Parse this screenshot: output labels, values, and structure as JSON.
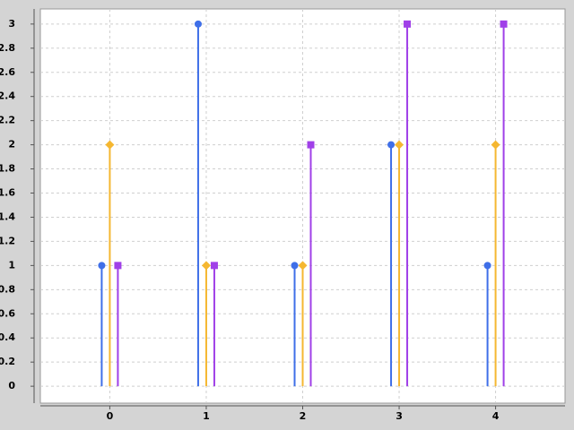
{
  "chart_data": {
    "type": "stem",
    "x": [
      0,
      1,
      2,
      3,
      4
    ],
    "series": [
      {
        "color": "#3f6fe8",
        "marker": "circle",
        "values": [
          1,
          3,
          1,
          2,
          1
        ]
      },
      {
        "color": "#f5b731",
        "marker": "diamond",
        "values": [
          2,
          1,
          1,
          2,
          2
        ]
      },
      {
        "color": "#a040e8",
        "marker": "square",
        "values": [
          1,
          1,
          2,
          3,
          3
        ]
      }
    ],
    "xlim": [
      -0.72,
      4.72
    ],
    "xticks": [
      0,
      1,
      2,
      3,
      4
    ],
    "ylim": [
      -0.14,
      3.125
    ],
    "yticks": [
      0,
      0.2,
      0.4,
      0.6,
      0.8,
      1,
      1.2,
      1.4,
      1.6,
      1.8,
      2,
      2.2,
      2.4,
      2.6,
      2.8,
      3
    ],
    "grid": true
  }
}
